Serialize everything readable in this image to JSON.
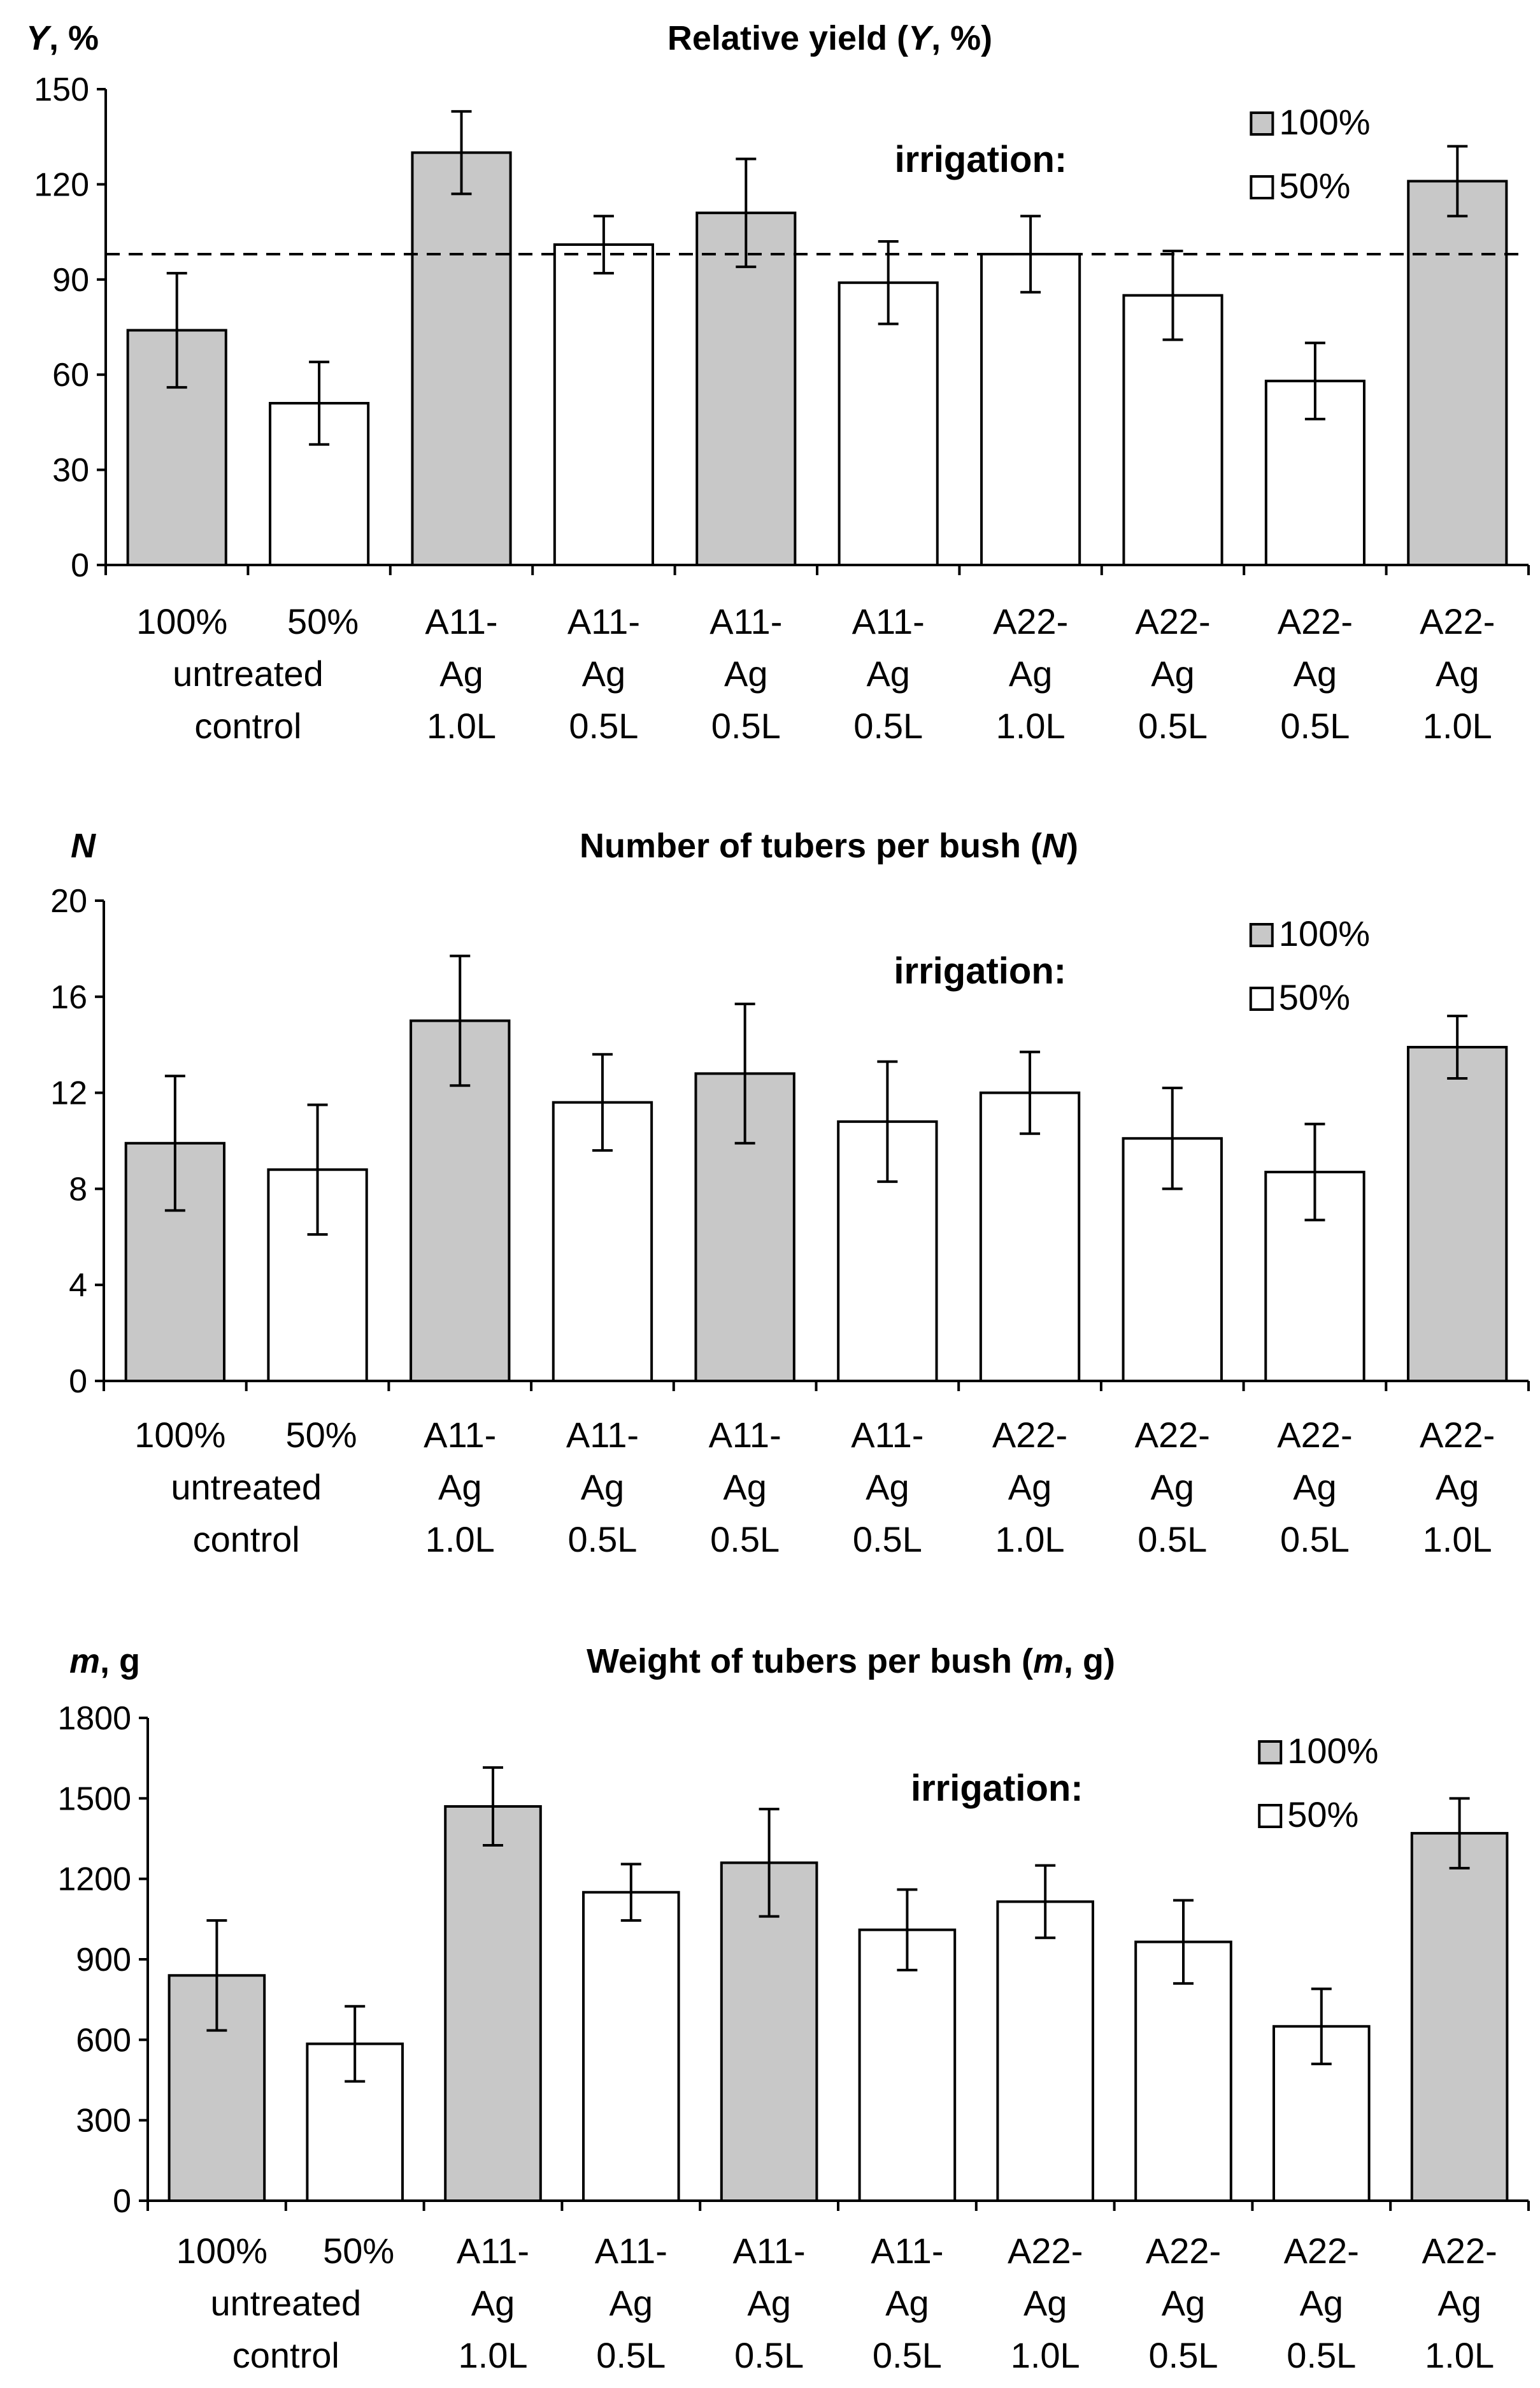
{
  "chart_data": [
    {
      "type": "bar",
      "title_parts": [
        "Relative yield (",
        "Y",
        ", %)"
      ],
      "ylabel_parts": [
        "Y",
        ", %"
      ],
      "ylim": [
        0,
        150
      ],
      "yticks": [
        "0",
        "30",
        "60",
        "90",
        "120",
        "150"
      ],
      "ytick_values": [
        0,
        30,
        60,
        90,
        120,
        150
      ],
      "reference_line": 98,
      "values": [
        74,
        51,
        130,
        101,
        111,
        89,
        98,
        85,
        58,
        121
      ],
      "errors": [
        18,
        13,
        13,
        9,
        17,
        13,
        12,
        14,
        12,
        11
      ]
    },
    {
      "type": "bar",
      "title_parts": [
        "Number of tubers per bush (",
        "N",
        ")"
      ],
      "ylabel_parts": [
        "N",
        ""
      ],
      "ylim": [
        0,
        20
      ],
      "yticks": [
        "0",
        "4",
        "8",
        "12",
        "16",
        "20"
      ],
      "ytick_values": [
        0,
        4,
        8,
        12,
        16,
        20
      ],
      "reference_line": null,
      "values": [
        9.9,
        8.8,
        15.0,
        11.6,
        12.8,
        10.8,
        12.0,
        10.1,
        8.7,
        13.9
      ],
      "errors": [
        2.8,
        2.7,
        2.7,
        2.0,
        2.9,
        2.5,
        1.7,
        2.1,
        2.0,
        1.3
      ]
    },
    {
      "type": "bar",
      "title_parts": [
        "Weight of tubers per bush (",
        "m",
        ", g)"
      ],
      "ylabel_parts": [
        "m",
        ", g"
      ],
      "ylim": [
        0,
        1800
      ],
      "yticks": [
        "0",
        "300",
        "600",
        "900",
        "1200",
        "1500",
        "1800"
      ],
      "ytick_values": [
        0,
        300,
        600,
        900,
        1200,
        1500,
        1800
      ],
      "reference_line": null,
      "values": [
        840,
        585,
        1470,
        1150,
        1260,
        1010,
        1115,
        965,
        650,
        1370
      ],
      "errors": [
        205,
        140,
        145,
        105,
        200,
        150,
        135,
        155,
        140,
        130
      ]
    }
  ],
  "categories": [
    [
      "100%",
      "untreated",
      "control"
    ],
    [
      "50%"
    ],
    [
      "A11-",
      "Ag",
      "1.0L"
    ],
    [
      "A11-",
      "Ag",
      "0.5L"
    ],
    [
      "A11-",
      "Ag",
      "0.5L"
    ],
    [
      "A11-",
      "Ag",
      "0.5L"
    ],
    [
      "A22-",
      "Ag",
      "1.0L"
    ],
    [
      "A22-",
      "Ag",
      "0.5L"
    ],
    [
      "A22-",
      "Ag",
      "0.5L"
    ],
    [
      "A22-",
      "Ag",
      "1.0L"
    ]
  ],
  "bar_irrigation": [
    "100%",
    "50%",
    "100%",
    "50%",
    "100%",
    "50%",
    "50%",
    "50%",
    "50%",
    "100%"
  ],
  "legend": {
    "label": "irrigation:",
    "items": [
      {
        "label": "100%",
        "color": "#c8c8c8"
      },
      {
        "label": "50%",
        "color": "#ffffff"
      }
    ]
  },
  "colors": {
    "full": "#c8c8c8",
    "half": "#ffffff",
    "stroke": "#000000"
  }
}
